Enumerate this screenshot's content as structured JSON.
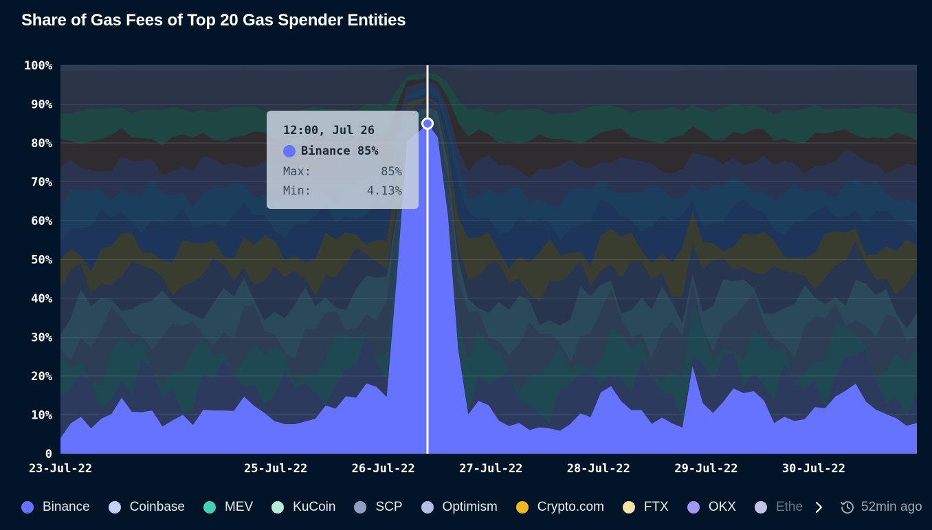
{
  "chart_data": {
    "type": "area",
    "stacked": true,
    "normalized": true,
    "title": "Share of Gas Fees of Top 20 Gas Spender Entities",
    "x_ticks": [
      "23-Jul-22",
      "25-Jul-22",
      "26-Jul-22",
      "27-Jul-22",
      "28-Jul-22",
      "29-Jul-22",
      "30-Jul-22"
    ],
    "y_ticks": [
      "100%",
      "90%",
      "80%",
      "70%",
      "60%",
      "50%",
      "40%",
      "30%",
      "20%",
      "10%",
      "0"
    ],
    "ylim": [
      0,
      100
    ],
    "x_start": "2022-07-23T00:00",
    "x_end": "2022-07-30T23:00",
    "highlighted_series": {
      "name": "Binance",
      "color": "#6573ff",
      "y": [
        4,
        7.8,
        9.5,
        6.5,
        9,
        10.2,
        14.4,
        10.8,
        10.7,
        11.1,
        7,
        8.6,
        10,
        7.4,
        11.3,
        11.1,
        11.1,
        11,
        14.7,
        12.3,
        10.5,
        8.4,
        7.6,
        7.6,
        8.3,
        9,
        12.4,
        11.6,
        14.8,
        14.4,
        18.1,
        17.2,
        14.6,
        46,
        80.5,
        82.5,
        85,
        81.5,
        61.5,
        27,
        10.1,
        13.6,
        12.5,
        8.5,
        7.1,
        7.9,
        6.1,
        6.8,
        6.5,
        5.9,
        7.6,
        10.4,
        9.4,
        15.8,
        17.4,
        13.5,
        11.2,
        11.2,
        7.7,
        9.3,
        7.8,
        6.7,
        22.5,
        13,
        10.5,
        13.3,
        16.8,
        15.6,
        16.1,
        13.7,
        7.9,
        9.5,
        8.4,
        8.9,
        12,
        11.7,
        14.7,
        16.2,
        18,
        13.4,
        11.3,
        10.2,
        9.1,
        7.2,
        7.9
      ],
      "x_tooltip_index": 36
    },
    "background_series_colors": [
      "#2c3b5e",
      "#1f4a52",
      "#2d3e54",
      "#2a4a5a",
      "#27354f",
      "#3a3d2e",
      "#1c3558",
      "#1b3e5e",
      "#2a3450",
      "#2f2b2e",
      "#1e4842",
      "#2b3347"
    ],
    "tooltip": {
      "time": "12:00, Jul 26",
      "series": "Binance",
      "value": "85%",
      "max_label": "Max:",
      "max_value": "85%",
      "min_label": "Min:",
      "min_value": "4.13%"
    },
    "legend": [
      {
        "name": "Binance",
        "color": "#6573ff"
      },
      {
        "name": "Coinbase",
        "color": "#c4d2fb"
      },
      {
        "name": "MEV",
        "color": "#43cfb8"
      },
      {
        "name": "KuCoin",
        "color": "#b8edd5"
      },
      {
        "name": "SCP",
        "color": "#8f9fc2"
      },
      {
        "name": "Optimism",
        "color": "#b5bfe4"
      },
      {
        "name": "Crypto.com",
        "color": "#f2b81f"
      },
      {
        "name": "FTX",
        "color": "#f5e3a6"
      },
      {
        "name": "OKX",
        "color": "#a497f2"
      },
      {
        "name": "Ethe",
        "color": "#d9d5fa"
      }
    ],
    "updated": "52min ago"
  }
}
